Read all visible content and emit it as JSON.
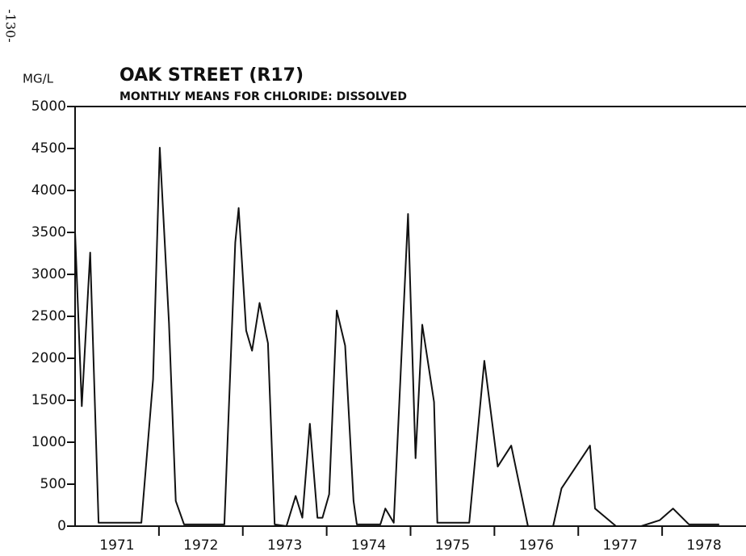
{
  "chart_data": {
    "type": "line",
    "page_number": "-130-",
    "title": "OAK STREET (R17)",
    "subtitle": "MONTHLY MEANS FOR CHLORIDE: DISSOLVED",
    "y_label": "MG/L",
    "x": [
      1971.0,
      1971.08,
      1971.18,
      1971.28,
      1971.79,
      1971.93,
      1972.01,
      1972.12,
      1972.2,
      1972.3,
      1972.78,
      1972.91,
      1972.95,
      1973.04,
      1973.11,
      1973.2,
      1973.3,
      1973.38,
      1973.52,
      1973.63,
      1973.71,
      1973.8,
      1973.89,
      1973.95,
      1974.03,
      1974.12,
      1974.22,
      1974.32,
      1974.36,
      1974.64,
      1974.7,
      1974.8,
      1974.97,
      1975.06,
      1975.14,
      1975.28,
      1975.32,
      1975.7,
      1975.88,
      1976.04,
      1976.2,
      1976.4,
      1976.7,
      1976.8,
      1977.14,
      1977.2,
      1977.45,
      1977.75,
      1977.97,
      1978.13,
      1978.32,
      1978.68
    ],
    "series": [
      {
        "name": "Chloride",
        "color": "#111111",
        "values": [
          3500,
          1430,
          3260,
          40,
          40,
          1750,
          4510,
          2420,
          300,
          20,
          20,
          3380,
          3790,
          2330,
          2090,
          2660,
          2180,
          20,
          0,
          360,
          100,
          1220,
          100,
          100,
          380,
          2570,
          2150,
          300,
          20,
          20,
          210,
          40,
          3720,
          810,
          2400,
          1480,
          40,
          40,
          1970,
          710,
          960,
          0,
          0,
          450,
          960,
          210,
          0,
          0,
          70,
          210,
          20,
          20
        ]
      }
    ],
    "xlim": [
      1971,
      1979
    ],
    "xticks": [
      {
        "value": 1971.5,
        "label": "1971"
      },
      {
        "value": 1972.5,
        "label": "1972"
      },
      {
        "value": 1973.5,
        "label": "1973"
      },
      {
        "value": 1974.5,
        "label": "1974"
      },
      {
        "value": 1975.5,
        "label": "1975"
      },
      {
        "value": 1976.5,
        "label": "1976"
      },
      {
        "value": 1977.5,
        "label": "1977"
      },
      {
        "value": 1978.5,
        "label": "1978"
      }
    ],
    "ylim": [
      0,
      5000
    ],
    "yticks": [
      0,
      500,
      1000,
      1500,
      2000,
      2500,
      3000,
      3500,
      4000,
      4500,
      5000
    ],
    "grid": false
  }
}
